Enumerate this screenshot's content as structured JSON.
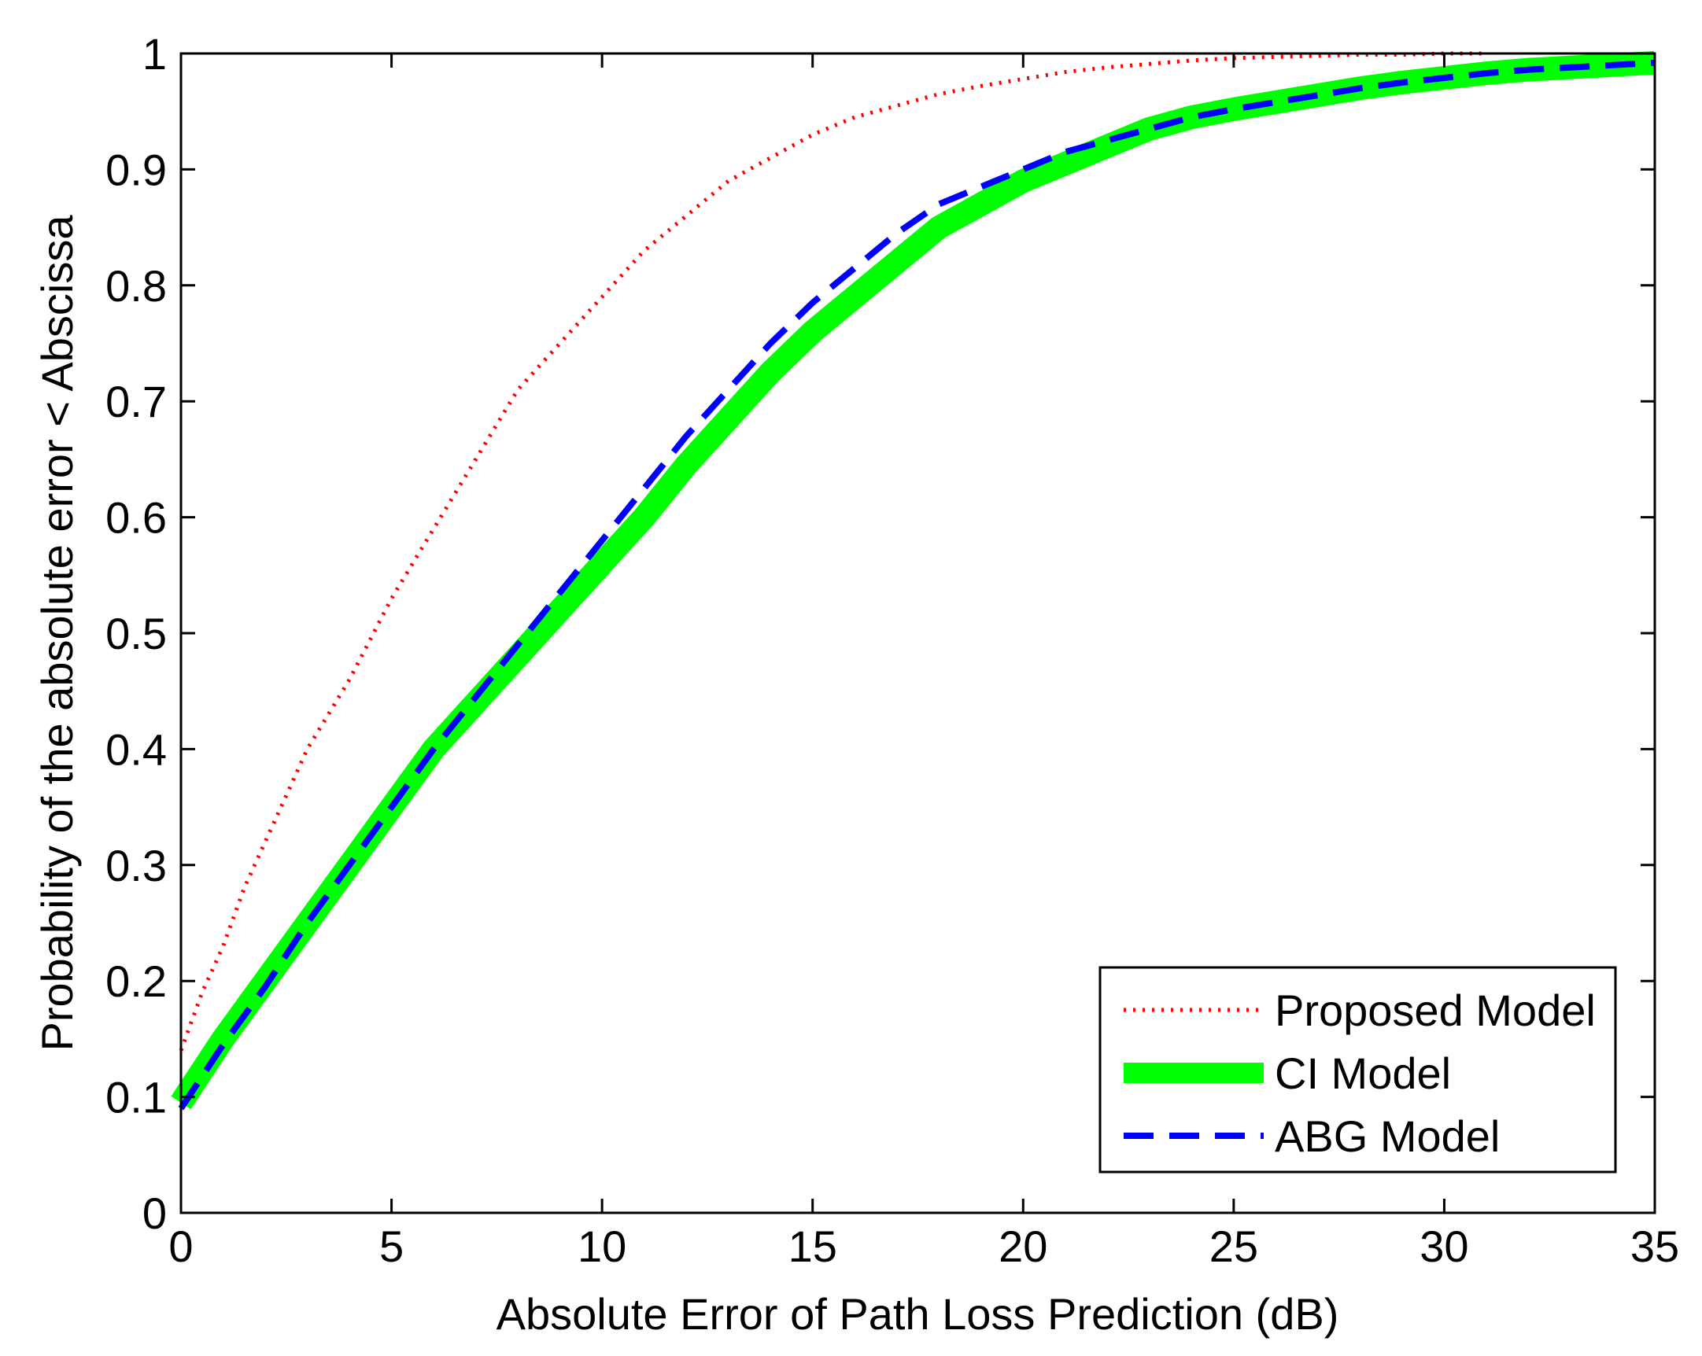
{
  "chart_data": {
    "type": "line",
    "title": "",
    "xlabel": "Absolute Error of Path Loss Prediction (dB)",
    "ylabel": "Probability of the absolute error < Abscissa",
    "xlim": [
      0,
      35
    ],
    "ylim": [
      0,
      1
    ],
    "xticks": [
      0,
      5,
      10,
      15,
      20,
      25,
      30,
      35
    ],
    "yticks": [
      0,
      0.1,
      0.2,
      0.3,
      0.4,
      0.5,
      0.6,
      0.7,
      0.8,
      0.9,
      1
    ],
    "xtick_labels": [
      "0",
      "5",
      "10",
      "15",
      "20",
      "25",
      "30",
      "35"
    ],
    "ytick_labels": [
      "0",
      "0.1",
      "0.2",
      "0.3",
      "0.4",
      "0.5",
      "0.6",
      "0.7",
      "0.8",
      "0.9",
      "1"
    ],
    "grid": false,
    "legend_position": "bottom-right",
    "series": [
      {
        "name": "Proposed Model",
        "color": "#ff0000",
        "style": "dotted",
        "x": [
          0,
          0.5,
          1,
          1.5,
          2,
          2.5,
          3,
          4,
          5,
          6,
          7,
          8,
          9,
          10,
          11,
          12,
          13,
          14,
          15,
          16,
          17,
          18,
          19,
          20,
          21,
          22,
          23,
          24,
          25,
          26,
          27,
          28,
          29,
          30,
          31
        ],
        "y": [
          0.14,
          0.19,
          0.23,
          0.28,
          0.32,
          0.36,
          0.4,
          0.46,
          0.53,
          0.59,
          0.65,
          0.71,
          0.75,
          0.79,
          0.83,
          0.86,
          0.89,
          0.91,
          0.93,
          0.945,
          0.955,
          0.965,
          0.972,
          0.978,
          0.984,
          0.988,
          0.991,
          0.994,
          0.996,
          0.997,
          0.998,
          0.999,
          0.999,
          1.0,
          1.0
        ]
      },
      {
        "name": "CI Model",
        "color": "#00ff00",
        "style": "solid-thick",
        "x": [
          0,
          1,
          2,
          3,
          4,
          5,
          6,
          7,
          8,
          9,
          10,
          11,
          12,
          13,
          14,
          15,
          16,
          17,
          18,
          19,
          20,
          21,
          22,
          23,
          24,
          25,
          26,
          27,
          28,
          29,
          30,
          31,
          32,
          33,
          34,
          35
        ],
        "y": [
          0.095,
          0.15,
          0.2,
          0.25,
          0.3,
          0.35,
          0.4,
          0.44,
          0.48,
          0.52,
          0.56,
          0.6,
          0.645,
          0.685,
          0.725,
          0.76,
          0.79,
          0.82,
          0.85,
          0.87,
          0.89,
          0.905,
          0.92,
          0.935,
          0.945,
          0.952,
          0.958,
          0.964,
          0.97,
          0.975,
          0.979,
          0.983,
          0.986,
          0.988,
          0.99,
          0.992
        ]
      },
      {
        "name": "ABG Model",
        "color": "#0000ff",
        "style": "dashed",
        "x": [
          0,
          1,
          2,
          3,
          4,
          5,
          6,
          7,
          8,
          9,
          10,
          11,
          12,
          13,
          14,
          15,
          16,
          17,
          18,
          19,
          20,
          21,
          22,
          23,
          24,
          25,
          26,
          27,
          28,
          29,
          30,
          31,
          32,
          33,
          34,
          35
        ],
        "y": [
          0.09,
          0.145,
          0.195,
          0.25,
          0.3,
          0.35,
          0.4,
          0.445,
          0.49,
          0.535,
          0.58,
          0.625,
          0.67,
          0.71,
          0.75,
          0.785,
          0.815,
          0.845,
          0.87,
          0.885,
          0.9,
          0.915,
          0.925,
          0.935,
          0.945,
          0.952,
          0.958,
          0.964,
          0.97,
          0.975,
          0.979,
          0.983,
          0.986,
          0.988,
          0.99,
          0.992
        ]
      }
    ]
  }
}
